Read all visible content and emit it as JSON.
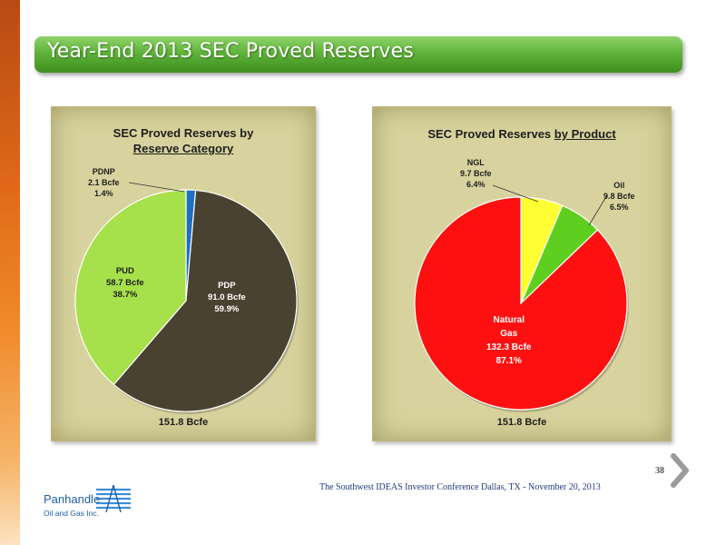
{
  "slide": {
    "title": "Year-End 2013 SEC Proved Reserves",
    "footer": "The Southwest  IDEAS Investor Conference Dallas, TX - November 20, 2013",
    "page_number": "38",
    "logo": {
      "name": "Panhandle",
      "sub": "Oil and Gas Inc."
    }
  },
  "chart_data": [
    {
      "type": "pie",
      "title_line1": "SEC Proved Reserves by",
      "title_line2": "Reserve  Category",
      "total": "151.8 Bcfe",
      "unit": "Bcfe",
      "slices": [
        {
          "name": "PDNP",
          "value": 2.1,
          "value_label": "2.1 Bcfe",
          "percent": "1.4%",
          "color": "#1f6fc2"
        },
        {
          "name": "PDP",
          "value": 91.0,
          "value_label": "91.0  Bcfe",
          "percent": "59.9%",
          "color": "#4a4230"
        },
        {
          "name": "PUD",
          "value": 58.7,
          "value_label": "58.7  Bcfe",
          "percent": "38.7%",
          "color": "#a6e04a"
        }
      ]
    },
    {
      "type": "pie",
      "title_plain": "SEC Proved Reserves ",
      "title_underlined": "by Product",
      "total": "151.8 Bcfe",
      "unit": "Bcfe",
      "slices": [
        {
          "name": "NGL",
          "value": 9.7,
          "value_label": "9.7 Bcfe",
          "percent": "6.4%",
          "color": "#ffff33"
        },
        {
          "name": "Oil",
          "value": 9.8,
          "value_label": "9.8 Bcfe",
          "percent": "6.5%",
          "color": "#5ecf1e"
        },
        {
          "name": "Natural Gas",
          "name_line1": "Natural",
          "name_line2": "Gas",
          "value": 132.3,
          "value_label": "132.3 Bcfe",
          "percent": "87.1%",
          "color": "#ff1010"
        }
      ]
    }
  ]
}
